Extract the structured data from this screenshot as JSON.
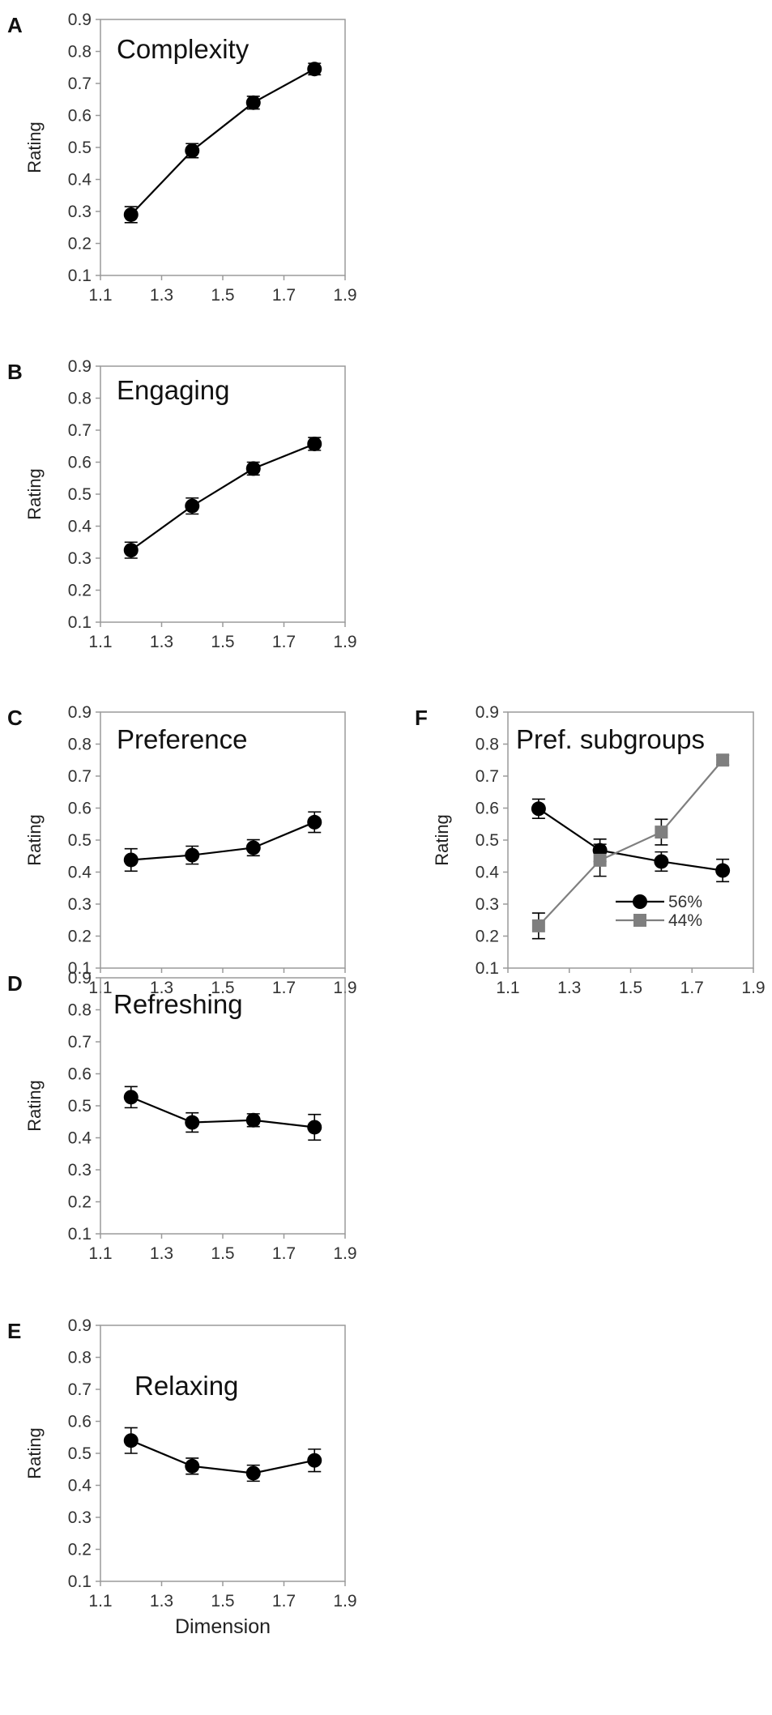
{
  "chart_data": [
    {
      "panel": "A",
      "title": "Complexity",
      "type": "line",
      "ylabel": "Rating",
      "xlabel": "",
      "xlim": [
        1.1,
        1.9
      ],
      "ylim": [
        0.1,
        0.9
      ],
      "xticks": [
        "1.1",
        "1.3",
        "1.5",
        "1.7",
        "1.9"
      ],
      "yticks": [
        "0.1",
        "0.2",
        "0.3",
        "0.4",
        "0.5",
        "0.6",
        "0.7",
        "0.8",
        "0.9"
      ],
      "series": [
        {
          "name": "",
          "color": "#000000",
          "marker": "circle",
          "x": [
            1.2,
            1.4,
            1.6,
            1.8
          ],
          "y": [
            0.29,
            0.49,
            0.64,
            0.745
          ],
          "err": [
            0.025,
            0.022,
            0.02,
            0.018
          ]
        }
      ]
    },
    {
      "panel": "B",
      "title": "Engaging",
      "type": "line",
      "ylabel": "Rating",
      "xlabel": "",
      "xlim": [
        1.1,
        1.9
      ],
      "ylim": [
        0.1,
        0.9
      ],
      "xticks": [
        "1.1",
        "1.3",
        "1.5",
        "1.7",
        "1.9"
      ],
      "yticks": [
        "0.1",
        "0.2",
        "0.3",
        "0.4",
        "0.5",
        "0.6",
        "0.7",
        "0.8",
        "0.9"
      ],
      "series": [
        {
          "name": "",
          "color": "#000000",
          "marker": "circle",
          "x": [
            1.2,
            1.4,
            1.6,
            1.8
          ],
          "y": [
            0.325,
            0.463,
            0.58,
            0.657
          ],
          "err": [
            0.025,
            0.025,
            0.02,
            0.02
          ]
        }
      ]
    },
    {
      "panel": "C",
      "title": "Preference",
      "type": "line",
      "ylabel": "Rating",
      "xlabel": "",
      "xlim": [
        1.1,
        1.9
      ],
      "ylim": [
        0.1,
        0.9
      ],
      "xticks": [
        "1.1",
        "1.3",
        "1.5",
        "1.7",
        "1.9"
      ],
      "yticks": [
        "0.1",
        "0.2",
        "0.3",
        "0.4",
        "0.5",
        "0.6",
        "0.7",
        "0.8",
        "0.9"
      ],
      "series": [
        {
          "name": "",
          "color": "#000000",
          "marker": "circle",
          "x": [
            1.2,
            1.4,
            1.6,
            1.8
          ],
          "y": [
            0.438,
            0.453,
            0.476,
            0.556
          ],
          "err": [
            0.035,
            0.028,
            0.025,
            0.032
          ]
        }
      ]
    },
    {
      "panel": "D",
      "title": "Refreshing",
      "type": "line",
      "ylabel": "Rating",
      "xlabel": "",
      "xlim": [
        1.1,
        1.9
      ],
      "ylim": [
        0.1,
        0.9
      ],
      "xticks": [
        "1.1",
        "1.3",
        "1.5",
        "1.7",
        "1.9"
      ],
      "yticks": [
        "0.1",
        "0.2",
        "0.3",
        "0.4",
        "0.5",
        "0.6",
        "0.7",
        "0.8",
        "0.9"
      ],
      "series": [
        {
          "name": "",
          "color": "#000000",
          "marker": "circle",
          "x": [
            1.2,
            1.4,
            1.6,
            1.8
          ],
          "y": [
            0.527,
            0.448,
            0.455,
            0.433
          ],
          "err": [
            0.033,
            0.03,
            0.02,
            0.04
          ]
        }
      ]
    },
    {
      "panel": "E",
      "title": "Relaxing",
      "type": "line",
      "ylabel": "Rating",
      "xlabel": "Dimension",
      "xlim": [
        1.1,
        1.9
      ],
      "ylim": [
        0.1,
        0.9
      ],
      "xticks": [
        "1.1",
        "1.3",
        "1.5",
        "1.7",
        "1.9"
      ],
      "yticks": [
        "0.1",
        "0.2",
        "0.3",
        "0.4",
        "0.5",
        "0.6",
        "0.7",
        "0.8",
        "0.9"
      ],
      "series": [
        {
          "name": "",
          "color": "#000000",
          "marker": "circle",
          "x": [
            1.2,
            1.4,
            1.6,
            1.8
          ],
          "y": [
            0.54,
            0.46,
            0.438,
            0.478
          ],
          "err": [
            0.04,
            0.025,
            0.025,
            0.035
          ]
        }
      ]
    },
    {
      "panel": "F",
      "title": "Pref. subgroups",
      "type": "line",
      "ylabel": "Rating",
      "xlabel": "",
      "xlim": [
        1.1,
        1.9
      ],
      "ylim": [
        0.1,
        0.9
      ],
      "xticks": [
        "1.1",
        "1.3",
        "1.5",
        "1.7",
        "1.9"
      ],
      "yticks": [
        "0.1",
        "0.2",
        "0.3",
        "0.4",
        "0.5",
        "0.6",
        "0.7",
        "0.8",
        "0.9"
      ],
      "legend": "lower-right",
      "series": [
        {
          "name": "56%",
          "color": "#000000",
          "marker": "circle",
          "x": [
            1.2,
            1.4,
            1.6,
            1.8
          ],
          "y": [
            0.598,
            0.468,
            0.433,
            0.405
          ],
          "err": [
            0.03,
            0.035,
            0.03,
            0.035
          ]
        },
        {
          "name": "44%",
          "color": "#7f7f7f",
          "marker": "square",
          "x": [
            1.2,
            1.4,
            1.6,
            1.8
          ],
          "y": [
            0.232,
            0.437,
            0.525,
            0.75
          ],
          "err": [
            0.04,
            0.05,
            0.04,
            0.015
          ]
        }
      ]
    }
  ]
}
